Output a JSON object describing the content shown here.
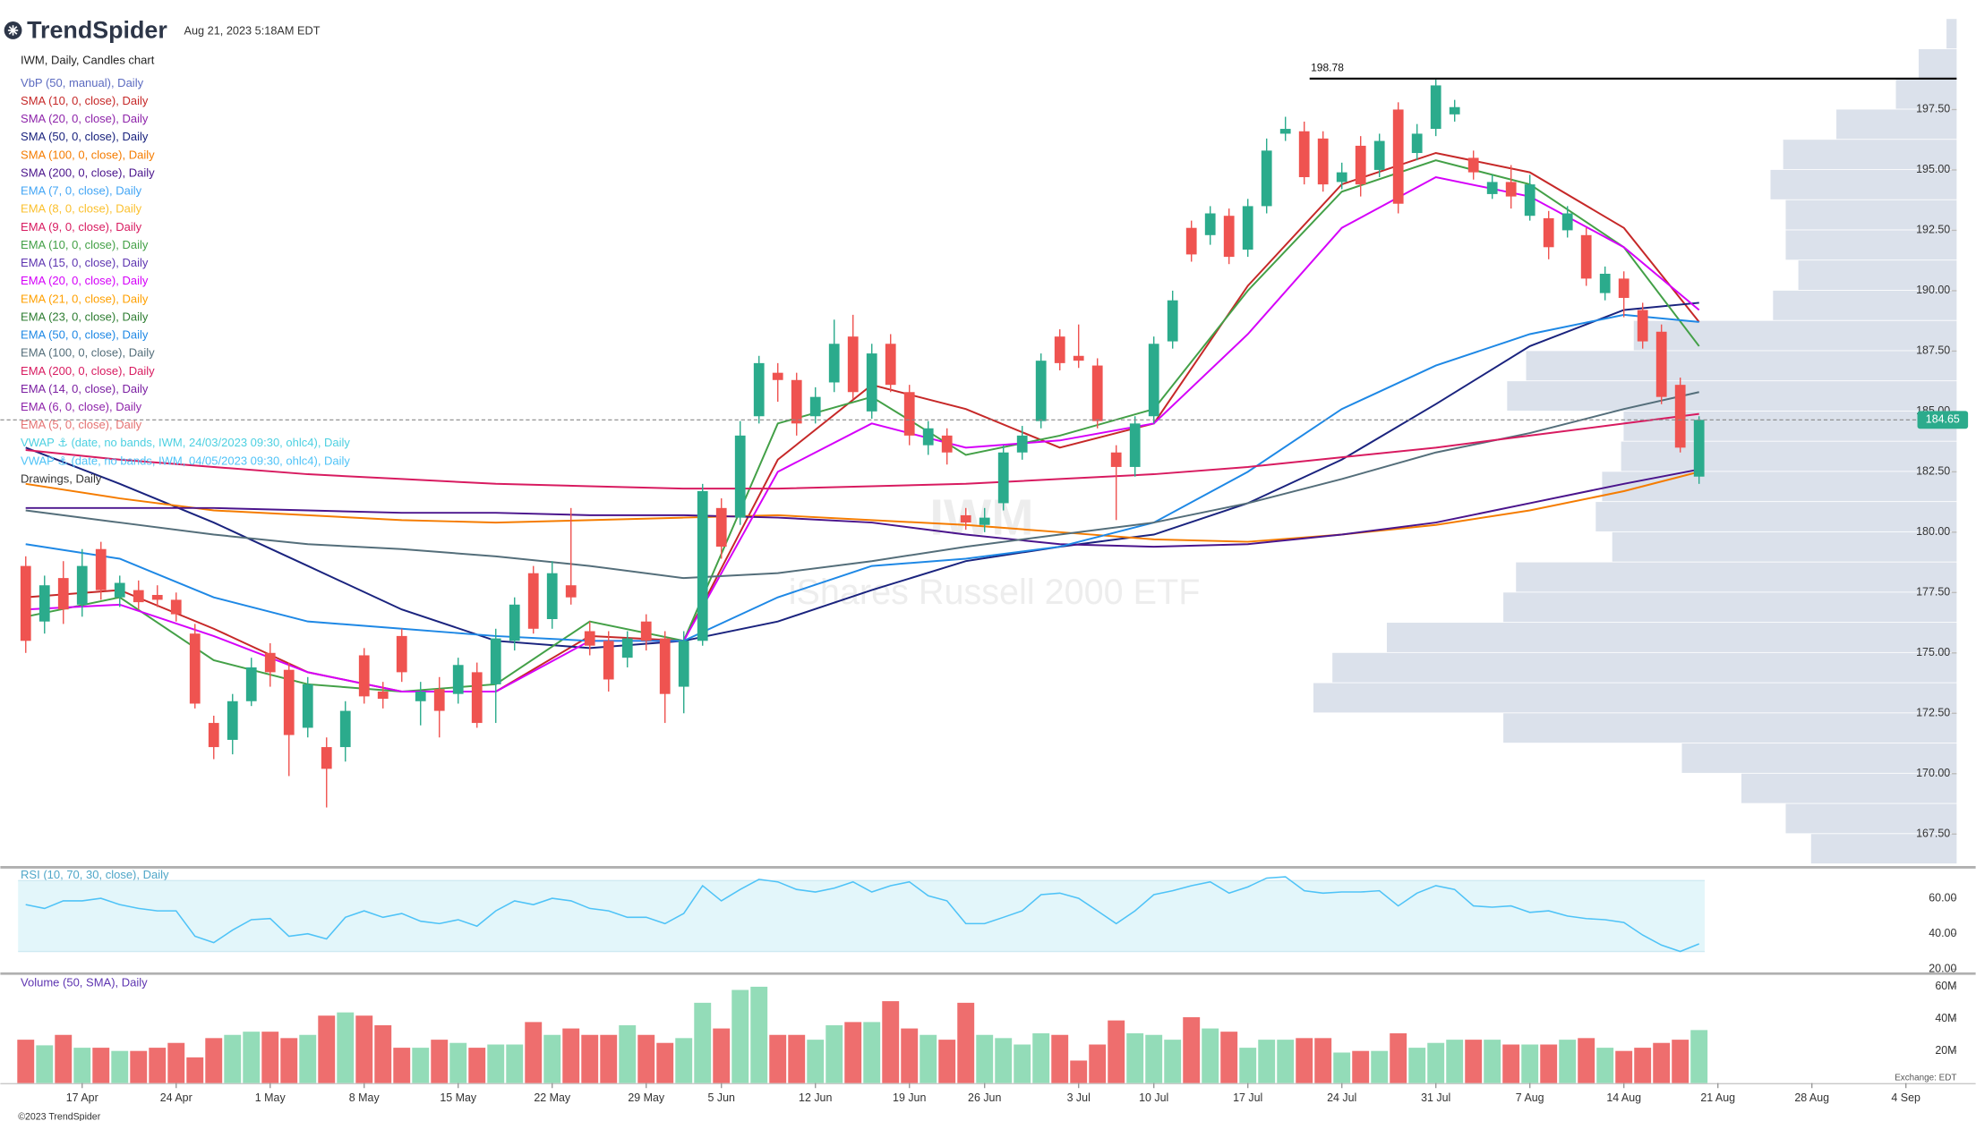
{
  "chart_data": {
    "type": "candlestick",
    "header": {
      "brand": "TrendSpider",
      "timestamp": "Aug 21, 2023 5:18AM EDT"
    },
    "title": "IWM, Daily, Candles chart",
    "watermark": {
      "symbol": "IWM",
      "name": "iShares Russell 2000 ETF"
    },
    "up_color": "#2bab8c",
    "down_color": "#ef5350",
    "xlim": [
      -1.35,
      102.7
    ],
    "xticks": [
      {
        "value": 3,
        "label": "17 Apr"
      },
      {
        "value": 8,
        "label": "24 Apr"
      },
      {
        "value": 13,
        "label": "1 May"
      },
      {
        "value": 18,
        "label": "8 May"
      },
      {
        "value": 23,
        "label": "15 May"
      },
      {
        "value": 28,
        "label": "22 May"
      },
      {
        "value": 33,
        "label": "29 May"
      },
      {
        "value": 37,
        "label": "5 Jun"
      },
      {
        "value": 42,
        "label": "12 Jun"
      },
      {
        "value": 47,
        "label": "19 Jun"
      },
      {
        "value": 51,
        "label": "26 Jun"
      },
      {
        "value": 56,
        "label": "3 Jul"
      },
      {
        "value": 60,
        "label": "10 Jul"
      },
      {
        "value": 65,
        "label": "17 Jul"
      },
      {
        "value": 70,
        "label": "24 Jul"
      },
      {
        "value": 75,
        "label": "31 Jul"
      },
      {
        "value": 80,
        "label": "7 Aug"
      },
      {
        "value": 85,
        "label": "14 Aug"
      },
      {
        "value": 90,
        "label": "21 Aug"
      },
      {
        "value": 95,
        "label": "28 Aug"
      },
      {
        "value": 100,
        "label": "4 Sep"
      }
    ],
    "ylim": [
      166.2,
      201.25
    ],
    "yticks": [
      {
        "value": 167.5,
        "label": "167.50"
      },
      {
        "value": 170,
        "label": "170.00"
      },
      {
        "value": 172.5,
        "label": "172.50"
      },
      {
        "value": 175,
        "label": "175.00"
      },
      {
        "value": 177.5,
        "label": "177.50"
      },
      {
        "value": 180,
        "label": "180.00"
      },
      {
        "value": 182.5,
        "label": "182.50"
      },
      {
        "value": 185,
        "label": "185.00"
      },
      {
        "value": 187.5,
        "label": "187.50"
      },
      {
        "value": 190,
        "label": "190.00"
      },
      {
        "value": 192.5,
        "label": "192.50"
      },
      {
        "value": 195,
        "label": "195.00"
      },
      {
        "value": 197.5,
        "label": "197.50"
      }
    ],
    "grid": false,
    "open": [
      178.6,
      176.3,
      178.1,
      177.0,
      179.3,
      177.3,
      177.6,
      177.4,
      177.2,
      175.8,
      172.1,
      171.4,
      173.0,
      175.0,
      174.3,
      171.9,
      171.1,
      171.1,
      174.9,
      173.4,
      175.7,
      173.0,
      173.5,
      173.3,
      174.2,
      173.7,
      175.5,
      178.3,
      176.4,
      177.8,
      175.9,
      175.5,
      174.8,
      176.3,
      175.6,
      173.6,
      175.5,
      181.0,
      180.6,
      184.8,
      186.6,
      186.3,
      184.8,
      186.2,
      188.1,
      185.0,
      187.8,
      185.8,
      183.6,
      184.0,
      180.7,
      180.3,
      181.2,
      183.3,
      184.6,
      188.1,
      187.3,
      186.9,
      183.3,
      182.7,
      184.8,
      187.9,
      192.6,
      192.3,
      193.1,
      191.7,
      193.5,
      196.5,
      196.6,
      196.3,
      194.5,
      196.0,
      195.0,
      197.5,
      195.7,
      196.7,
      197.3,
      195.5,
      194.0,
      194.5,
      193.1,
      193.0,
      192.5,
      192.3,
      189.9,
      190.5,
      189.2,
      188.3,
      186.1,
      182.3
    ],
    "high": [
      179.0,
      178.2,
      178.8,
      179.3,
      179.6,
      178.2,
      178.0,
      177.8,
      177.5,
      176.2,
      172.4,
      173.3,
      174.8,
      175.4,
      174.6,
      174.0,
      171.5,
      173.0,
      175.2,
      173.8,
      176.0,
      173.8,
      174.0,
      174.8,
      174.6,
      176.0,
      177.3,
      178.6,
      178.8,
      181.0,
      176.3,
      175.9,
      175.9,
      176.6,
      175.9,
      175.9,
      182.0,
      181.4,
      184.6,
      187.3,
      187.0,
      186.6,
      186.0,
      188.8,
      189.0,
      187.8,
      188.2,
      186.1,
      184.6,
      184.3,
      181.0,
      181.0,
      183.6,
      184.4,
      187.4,
      188.4,
      188.6,
      187.2,
      183.6,
      184.8,
      188.1,
      190.0,
      192.9,
      193.5,
      193.4,
      193.8,
      196.3,
      197.2,
      197.0,
      196.6,
      195.3,
      196.4,
      196.5,
      197.8,
      196.9,
      198.78,
      197.9,
      195.8,
      194.8,
      195.2,
      194.8,
      193.3,
      193.5,
      192.6,
      191.0,
      190.8,
      189.5,
      188.6,
      186.4,
      184.8
    ],
    "low": [
      175.0,
      175.8,
      176.2,
      176.5,
      177.2,
      176.9,
      176.8,
      176.9,
      176.3,
      172.7,
      170.6,
      170.8,
      172.8,
      173.6,
      169.9,
      171.5,
      168.6,
      170.5,
      172.9,
      172.7,
      173.8,
      172.0,
      171.5,
      172.9,
      171.9,
      172.1,
      175.1,
      175.8,
      176.0,
      177.0,
      174.9,
      173.4,
      174.4,
      175.1,
      172.1,
      172.5,
      175.3,
      178.9,
      180.3,
      184.5,
      185.4,
      184.0,
      184.5,
      185.8,
      185.5,
      184.7,
      185.8,
      183.6,
      183.2,
      182.8,
      180.1,
      180.0,
      180.9,
      183.0,
      184.3,
      186.7,
      186.8,
      184.3,
      180.5,
      182.3,
      184.5,
      187.6,
      191.2,
      191.9,
      191.1,
      191.4,
      193.2,
      196.2,
      194.4,
      194.1,
      194.2,
      193.9,
      194.7,
      193.2,
      195.4,
      196.4,
      197.0,
      194.6,
      193.8,
      193.4,
      192.9,
      191.3,
      192.2,
      190.2,
      189.6,
      188.9,
      187.6,
      185.3,
      183.3,
      182.0
    ],
    "close": [
      175.5,
      177.8,
      176.8,
      178.6,
      177.6,
      177.9,
      177.1,
      177.2,
      176.6,
      172.9,
      171.1,
      173.0,
      174.4,
      174.2,
      171.6,
      173.7,
      170.2,
      172.6,
      173.2,
      173.1,
      174.2,
      173.4,
      172.6,
      174.5,
      172.1,
      175.6,
      177.0,
      176.0,
      178.3,
      177.3,
      175.3,
      173.9,
      175.6,
      175.5,
      173.3,
      175.5,
      181.7,
      179.4,
      184.0,
      187.0,
      186.3,
      184.5,
      185.6,
      187.8,
      185.8,
      187.4,
      186.1,
      184.0,
      184.3,
      183.3,
      180.4,
      180.6,
      183.3,
      184.0,
      187.1,
      187.0,
      187.1,
      184.6,
      182.7,
      184.5,
      187.8,
      189.6,
      191.5,
      193.2,
      191.4,
      193.5,
      195.8,
      196.7,
      194.7,
      194.4,
      194.9,
      194.4,
      196.2,
      193.6,
      196.5,
      198.5,
      197.6,
      194.9,
      194.5,
      193.9,
      194.4,
      191.8,
      193.2,
      190.5,
      190.7,
      189.7,
      187.9,
      185.6,
      183.5,
      184.65
    ],
    "indicators": [
      {
        "name": "VbP (50, manual), Daily",
        "color": "#5c6bc0"
      },
      {
        "name": "SMA (10, 0, close), Daily",
        "color": "#c62828",
        "x": [
          0,
          5,
          10,
          15,
          20,
          25,
          30,
          35,
          40,
          45,
          50,
          55,
          60,
          65,
          70,
          75,
          80,
          85,
          89
        ],
        "values": [
          177.3,
          177.6,
          176.0,
          174.2,
          173.4,
          173.4,
          175.7,
          175.5,
          183.0,
          186.1,
          185.1,
          183.5,
          184.5,
          190.2,
          194.4,
          195.7,
          194.9,
          192.6,
          188.7
        ]
      },
      {
        "name": "SMA (20, 0, close), Daily",
        "color": "#8e24aa"
      },
      {
        "name": "SMA (50, 0, close), Daily",
        "color": "#1a237e",
        "x": [
          0,
          5,
          10,
          15,
          20,
          25,
          30,
          35,
          40,
          45,
          50,
          55,
          60,
          65,
          70,
          75,
          80,
          85,
          89
        ],
        "values": [
          183.5,
          182.0,
          180.4,
          178.6,
          176.8,
          175.5,
          175.2,
          175.5,
          176.3,
          177.6,
          178.8,
          179.4,
          179.9,
          181.2,
          183.0,
          185.3,
          187.7,
          189.2,
          189.5
        ]
      },
      {
        "name": "SMA (100, 0, close), Daily",
        "color": "#f57c00",
        "x": [
          0,
          5,
          10,
          15,
          20,
          25,
          30,
          35,
          40,
          45,
          50,
          55,
          60,
          65,
          70,
          75,
          80,
          85,
          89
        ],
        "values": [
          182.0,
          181.4,
          180.9,
          180.7,
          180.5,
          180.4,
          180.5,
          180.6,
          180.7,
          180.5,
          180.3,
          180.0,
          179.7,
          179.6,
          179.9,
          180.3,
          180.9,
          181.7,
          182.5
        ]
      },
      {
        "name": "SMA (200, 0, close), Daily",
        "color": "#4a148c",
        "x": [
          0,
          5,
          10,
          15,
          20,
          25,
          30,
          35,
          40,
          45,
          50,
          55,
          60,
          65,
          70,
          75,
          80,
          85,
          89
        ],
        "values": [
          181.0,
          181.0,
          181.0,
          180.9,
          180.8,
          180.8,
          180.7,
          180.7,
          180.6,
          180.4,
          179.9,
          179.5,
          179.4,
          179.5,
          179.9,
          180.4,
          181.2,
          182.0,
          182.6
        ]
      },
      {
        "name": "EMA (7, 0, close), Daily",
        "color": "#42a5f5"
      },
      {
        "name": "EMA (8, 0, close), Daily",
        "color": "#fbc02d"
      },
      {
        "name": "EMA (9, 0, close), Daily",
        "color": "#d81b60"
      },
      {
        "name": "EMA (10, 0, close), Daily",
        "color": "#43a047",
        "x": [
          0,
          5,
          10,
          15,
          20,
          25,
          30,
          35,
          40,
          45,
          50,
          55,
          60,
          65,
          70,
          75,
          80,
          85,
          89
        ],
        "values": [
          176.5,
          177.3,
          174.7,
          173.7,
          173.4,
          173.7,
          176.3,
          175.5,
          184.5,
          185.6,
          183.2,
          184.0,
          185.1,
          190.0,
          194.1,
          195.4,
          194.4,
          191.8,
          187.7
        ]
      },
      {
        "name": "EMA (15, 0, close), Daily",
        "color": "#5e35b1"
      },
      {
        "name": "EMA (20, 0, close), Daily",
        "color": "#d500f9",
        "x": [
          0,
          5,
          10,
          15,
          20,
          25,
          30,
          35,
          40,
          45,
          50,
          55,
          60,
          65,
          70,
          75,
          80,
          85,
          89
        ],
        "values": [
          176.8,
          177.0,
          175.7,
          174.2,
          173.4,
          173.4,
          175.5,
          175.5,
          182.5,
          184.5,
          183.5,
          183.8,
          184.5,
          188.2,
          192.6,
          194.7,
          193.9,
          191.8,
          189.2
        ]
      },
      {
        "name": "EMA (21, 0, close), Daily",
        "color": "#ffa000"
      },
      {
        "name": "EMA (23, 0, close), Daily",
        "color": "#2e7d32"
      },
      {
        "name": "EMA (50, 0, close), Daily",
        "color": "#1e88e5",
        "x": [
          0,
          5,
          10,
          15,
          20,
          25,
          30,
          35,
          40,
          45,
          50,
          55,
          60,
          65,
          70,
          75,
          80,
          85,
          89
        ],
        "values": [
          179.5,
          178.9,
          177.3,
          176.3,
          176.0,
          175.7,
          175.5,
          175.5,
          177.3,
          178.6,
          178.9,
          179.4,
          180.4,
          182.5,
          185.1,
          186.9,
          188.2,
          189.0,
          188.7
        ]
      },
      {
        "name": "EMA (100, 0, close), Daily",
        "color": "#546e7a",
        "x": [
          0,
          5,
          10,
          15,
          20,
          25,
          30,
          35,
          40,
          45,
          50,
          55,
          60,
          65,
          70,
          75,
          80,
          85,
          89
        ],
        "values": [
          180.9,
          180.4,
          179.9,
          179.5,
          179.3,
          179.0,
          178.6,
          178.1,
          178.3,
          178.8,
          179.4,
          179.9,
          180.4,
          181.2,
          182.2,
          183.3,
          184.1,
          185.1,
          185.8
        ]
      },
      {
        "name": "EMA (200, 0, close), Daily",
        "color": "#d81b60",
        "x": [
          0,
          5,
          10,
          15,
          20,
          25,
          30,
          35,
          40,
          45,
          50,
          55,
          60,
          65,
          70,
          75,
          80,
          85,
          89
        ],
        "values": [
          183.4,
          183.0,
          182.7,
          182.4,
          182.2,
          182.0,
          181.9,
          181.8,
          181.8,
          181.9,
          182.0,
          182.2,
          182.4,
          182.7,
          183.1,
          183.5,
          184.0,
          184.5,
          184.9
        ]
      },
      {
        "name": "EMA (14, 0, close), Daily",
        "color": "#7b1fa2"
      },
      {
        "name": "EMA (6, 0, close), Daily",
        "color": "#8e24aa"
      },
      {
        "name": "EMA (5, 0, close), Daily",
        "color": "#e57373"
      },
      {
        "name": "VWAP ⚓ (date, no bands, IWM, 24/03/2023 09:30, ohlc4), Daily",
        "color": "#4dd0e1"
      },
      {
        "name": "VWAP ⚓ (date, no bands, IWM, 04/05/2023 09:30, ohlc4), Daily",
        "color": "#4fc3f7"
      },
      {
        "name": "Drawings, Daily",
        "color": "#333333"
      }
    ],
    "volume_profile": {
      "color": "#d5dce8",
      "bins": [
        166.25,
        167.5,
        168.75,
        170,
        171.25,
        172.5,
        173.75,
        175,
        176.25,
        177.5,
        178.75,
        180,
        181.25,
        182.5,
        183.75,
        185,
        186.25,
        187.5,
        188.75,
        190,
        191.25,
        192.5,
        193.75,
        195,
        196.25,
        197.5,
        198.75,
        200,
        201.25
      ],
      "values": [
        115,
        135,
        170,
        217,
        358,
        508,
        493,
        450,
        358,
        348,
        272,
        285,
        280,
        265,
        263,
        355,
        340,
        255,
        145,
        125,
        135,
        135,
        147,
        137,
        95,
        48,
        30,
        8
      ]
    },
    "rsi": {
      "label": "RSI (10, 70, 30, close), Daily",
      "color": "#4fc3f7",
      "band": [
        30,
        70
      ],
      "ylim": [
        18.6,
        75.7
      ],
      "yticks": [
        {
          "value": 20,
          "label": "20.00"
        },
        {
          "value": 40,
          "label": "40.00"
        },
        {
          "value": 60,
          "label": "60.00"
        }
      ],
      "values": [
        56.4,
        54.3,
        58.6,
        58.6,
        60,
        56.4,
        54.3,
        52.9,
        52.9,
        38.6,
        35,
        42.1,
        47.9,
        48.6,
        38.6,
        40,
        37.1,
        49.3,
        52.9,
        49.3,
        51.4,
        47.1,
        45.7,
        47.9,
        44.3,
        52.9,
        58.6,
        56.4,
        60,
        58.6,
        54.3,
        52.9,
        49.3,
        49.3,
        45.7,
        51.4,
        67.1,
        58.6,
        65,
        70.7,
        69.3,
        65,
        63.6,
        65.7,
        69.3,
        63.6,
        67.1,
        69.3,
        61.4,
        58.6,
        45.7,
        45.7,
        49.3,
        52.9,
        62.1,
        62.9,
        60,
        52.9,
        45.7,
        52.9,
        62.1,
        64.3,
        67.1,
        69.3,
        62.9,
        66.4,
        71.4,
        72.1,
        64.3,
        62.9,
        63.6,
        63.6,
        64.3,
        55.7,
        62.9,
        67.1,
        65,
        55.7,
        55,
        55.7,
        52.1,
        52.9,
        50,
        48.6,
        47.9,
        46.4,
        39.3,
        33.6,
        30,
        34.3
      ]
    },
    "volume": {
      "label": "Volume (50, SMA), Daily",
      "up_color": "#93dcb8",
      "down_color": "#ee6e6e",
      "ylim": [
        0,
        67
      ],
      "yticks": [
        {
          "value": 20,
          "label": "20M"
        },
        {
          "value": 40,
          "label": "40M"
        },
        {
          "value": 60,
          "label": "60M"
        }
      ],
      "values": [
        27,
        23.5,
        30,
        22,
        22,
        20,
        20,
        22,
        25,
        16,
        28,
        30,
        32,
        32,
        28,
        30,
        42,
        44,
        42,
        36,
        22,
        22,
        27,
        25,
        22,
        24,
        24,
        38,
        30,
        34,
        30,
        30,
        36,
        30,
        25,
        28,
        50,
        34,
        58,
        60,
        30,
        30,
        27,
        36,
        38,
        38,
        51,
        34,
        30,
        27,
        50,
        30,
        28,
        24,
        31,
        30,
        14,
        24,
        39,
        31,
        30,
        27,
        41,
        34,
        32,
        22,
        27,
        27,
        28,
        28,
        19,
        20,
        20,
        31,
        22,
        25,
        27,
        27,
        27,
        24,
        24,
        24,
        27,
        28,
        22,
        20,
        22,
        25,
        27,
        33
      ]
    },
    "footer": {
      "exchange": "Exchange: EDT",
      "copyright": "©2023 TrendSpider"
    }
  }
}
